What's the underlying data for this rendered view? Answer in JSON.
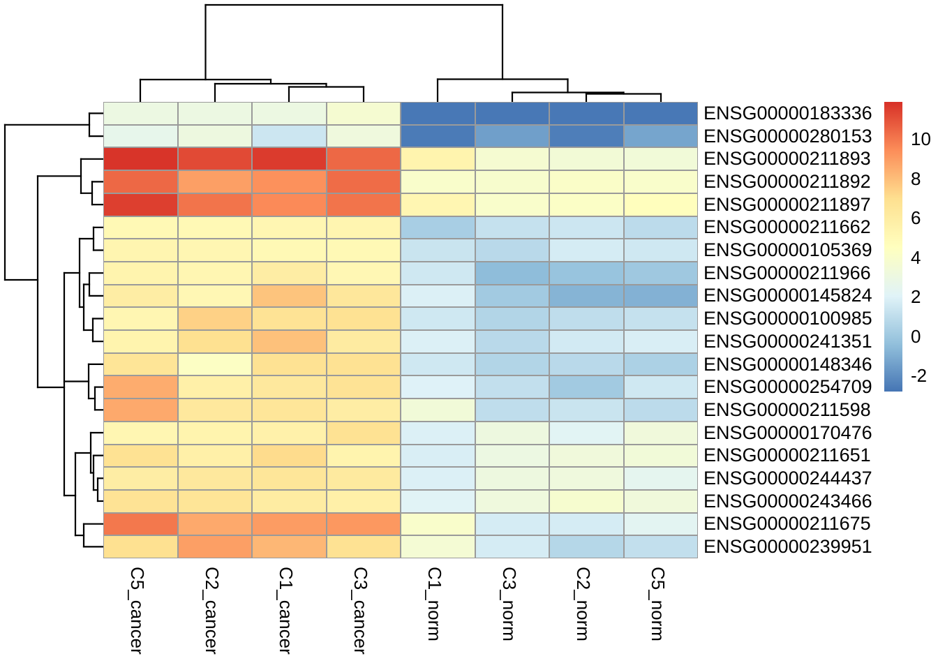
{
  "figure": {
    "background": "#ffffff",
    "grid_border_color": "#9a9a9a",
    "dendrogram_color": "#000000",
    "label_color": "#000000"
  },
  "chart_data": {
    "type": "heatmap",
    "columns": [
      "C5_cancer",
      "C2_cancer",
      "C1_cancer",
      "C3_cancer",
      "C1_norm",
      "C3_norm",
      "C2_norm",
      "C5_norm"
    ],
    "rows": [
      "ENSG00000183336",
      "ENSG00000280153",
      "ENSG00000211893",
      "ENSG00000211892",
      "ENSG00000211897",
      "ENSG00000211662",
      "ENSG00000105369",
      "ENSG00000211966",
      "ENSG00000145824",
      "ENSG00000100985",
      "ENSG00000241351",
      "ENSG00000148346",
      "ENSG00000254709",
      "ENSG00000211598",
      "ENSG00000170476",
      "ENSG00000211651",
      "ENSG00000244437",
      "ENSG00000243466",
      "ENSG00000211675",
      "ENSG00000239951"
    ],
    "values": [
      [
        3.0,
        3.0,
        3.0,
        3.7,
        -2.8,
        -2.8,
        -2.8,
        -2.8
      ],
      [
        2.6,
        3.1,
        1.4,
        3.2,
        -2.7,
        -1.5,
        -2.6,
        -1.3
      ],
      [
        11.8,
        11.2,
        11.6,
        10.4,
        5.4,
        3.7,
        3.5,
        3.4
      ],
      [
        10.4,
        8.9,
        9.3,
        10.3,
        4.0,
        3.9,
        4.1,
        4.0
      ],
      [
        11.5,
        10.1,
        9.5,
        10.1,
        5.2,
        4.0,
        4.2,
        4.6
      ],
      [
        5.0,
        5.0,
        5.2,
        5.3,
        0.3,
        1.2,
        1.4,
        0.9
      ],
      [
        5.3,
        5.2,
        5.0,
        5.0,
        1.3,
        0.8,
        1.7,
        1.5
      ],
      [
        5.4,
        5.2,
        5.9,
        5.1,
        1.5,
        -0.5,
        -0.2,
        0.0
      ],
      [
        5.9,
        5.1,
        7.8,
        6.4,
        1.9,
        0.1,
        -0.8,
        -0.9
      ],
      [
        5.2,
        7.4,
        6.7,
        6.8,
        1.5,
        0.6,
        1.0,
        1.2
      ],
      [
        5.4,
        6.9,
        7.9,
        6.1,
        1.9,
        0.8,
        1.6,
        1.8
      ],
      [
        6.6,
        4.3,
        6.8,
        6.8,
        1.5,
        0.6,
        0.8,
        0.4
      ],
      [
        8.5,
        5.7,
        6.3,
        6.7,
        2.0,
        1.1,
        0.1,
        1.5
      ],
      [
        8.6,
        6.3,
        6.5,
        5.9,
        3.4,
        1.0,
        1.3,
        0.9
      ],
      [
        5.2,
        5.4,
        5.6,
        6.8,
        1.9,
        3.1,
        2.2,
        3.3
      ],
      [
        6.8,
        5.7,
        7.1,
        5.4,
        1.8,
        3.0,
        3.3,
        3.4
      ],
      [
        5.9,
        6.3,
        6.5,
        6.2,
        1.9,
        3.1,
        3.2,
        2.4
      ],
      [
        6.7,
        6.6,
        6.0,
        5.7,
        2.1,
        3.2,
        3.8,
        3.3
      ],
      [
        10.0,
        8.6,
        9.0,
        9.1,
        4.0,
        1.7,
        1.7,
        2.3
      ],
      [
        6.9,
        8.9,
        8.2,
        6.8,
        3.6,
        1.7,
        0.7,
        1.1
      ]
    ],
    "color_scale": {
      "palette_name": "RdYlBu reversed",
      "anchor_values": [
        -2.9,
        -0.43,
        2.03,
        4.5,
        6.97,
        9.43,
        11.9
      ],
      "anchor_colors": [
        "#4575b4",
        "#91bfdb",
        "#e0f3f8",
        "#ffffbf",
        "#fee090",
        "#fc8d59",
        "#d73027"
      ],
      "domain_top": 11.88,
      "domain_bottom": -2.8
    },
    "legend": {
      "tick_labels": [
        "10",
        "8",
        "6",
        "4",
        "2",
        "0",
        "-2"
      ],
      "tick_values": [
        10,
        8,
        6,
        4,
        2,
        0,
        -2
      ]
    },
    "col_dendrogram_segments": [
      [
        201,
        146,
        201,
        114
      ],
      [
        308,
        146,
        308,
        120
      ],
      [
        414,
        146,
        414,
        124.5
      ],
      [
        521,
        146,
        521,
        124.5
      ],
      [
        414,
        124.5,
        521,
        124.5
      ],
      [
        467.5,
        124.5,
        467.5,
        120
      ],
      [
        308,
        120,
        467.5,
        120
      ],
      [
        388,
        120,
        388,
        114
      ],
      [
        201,
        114,
        388,
        114
      ],
      [
        294.5,
        114,
        294.5,
        7
      ],
      [
        627,
        146,
        627,
        113.5
      ],
      [
        734,
        146,
        734,
        132.5
      ],
      [
        840,
        146,
        840,
        134.5
      ],
      [
        947,
        146,
        947,
        134.5
      ],
      [
        840,
        134.5,
        947,
        134.5
      ],
      [
        893.5,
        134.5,
        893.5,
        132.5
      ],
      [
        734,
        132.5,
        893.5,
        132.5
      ],
      [
        813.5,
        132.5,
        813.5,
        113.5
      ],
      [
        627,
        113.5,
        813.5,
        113.5
      ],
      [
        720,
        113.5,
        720,
        7
      ],
      [
        294.5,
        7,
        720,
        7
      ]
    ],
    "row_dendrogram_segments": [
      [
        148,
        162.4,
        128,
        162.4
      ],
      [
        148,
        195.1,
        128,
        195.1
      ],
      [
        128,
        162.4,
        128,
        195.1
      ],
      [
        128,
        178.8,
        7,
        178.8
      ],
      [
        7,
        178.8,
        7,
        401
      ],
      [
        7,
        401,
        54,
        401
      ],
      [
        54,
        252.3,
        54,
        555
      ],
      [
        54,
        252.3,
        116,
        252.3
      ],
      [
        116,
        227.8,
        116,
        276.8
      ],
      [
        116,
        227.8,
        148,
        227.8
      ],
      [
        116,
        276.8,
        132,
        276.8
      ],
      [
        132,
        260.4,
        132,
        293.1
      ],
      [
        132,
        260.4,
        148,
        260.4
      ],
      [
        132,
        293.1,
        148,
        293.1
      ],
      [
        54,
        555,
        92,
        555
      ],
      [
        92,
        391,
        92,
        710
      ],
      [
        92,
        391,
        114,
        391
      ],
      [
        114,
        342,
        114,
        440
      ],
      [
        114,
        342,
        134,
        342
      ],
      [
        134,
        325.8,
        134,
        358.5
      ],
      [
        134,
        325.8,
        148,
        325.8
      ],
      [
        134,
        358.5,
        148,
        358.5
      ],
      [
        114,
        440,
        120,
        440
      ],
      [
        120,
        407.5,
        120,
        473
      ],
      [
        120,
        407.5,
        128,
        407.5
      ],
      [
        128,
        391.2,
        128,
        423.9
      ],
      [
        128,
        391.2,
        148,
        391.2
      ],
      [
        128,
        423.9,
        148,
        423.9
      ],
      [
        120,
        473,
        133,
        473
      ],
      [
        133,
        456.5,
        133,
        489.2
      ],
      [
        133,
        456.5,
        148,
        456.5
      ],
      [
        133,
        489.2,
        148,
        489.2
      ],
      [
        92,
        546.5,
        127,
        546.5
      ],
      [
        127,
        521.9,
        127,
        571
      ],
      [
        127,
        521.9,
        148,
        521.9
      ],
      [
        127,
        571,
        136,
        571
      ],
      [
        136,
        554.6,
        136,
        587.3
      ],
      [
        136,
        554.6,
        148,
        554.6
      ],
      [
        136,
        587.3,
        148,
        587.3
      ],
      [
        92,
        710,
        108,
        710
      ],
      [
        108,
        649,
        108,
        767.1
      ],
      [
        108,
        649,
        130,
        649
      ],
      [
        130,
        620,
        130,
        677.5
      ],
      [
        130,
        620,
        148,
        620
      ],
      [
        130,
        677.5,
        134,
        677.5
      ],
      [
        134,
        652.6,
        134,
        702.1
      ],
      [
        134,
        652.6,
        148,
        652.6
      ],
      [
        134,
        702.1,
        140,
        702.1
      ],
      [
        140,
        685.3,
        140,
        718
      ],
      [
        140,
        685.3,
        148,
        685.3
      ],
      [
        140,
        718,
        148,
        718
      ],
      [
        108,
        767.1,
        120,
        767.1
      ],
      [
        120,
        750.7,
        120,
        783.4
      ],
      [
        120,
        750.7,
        148,
        750.7
      ],
      [
        120,
        783.4,
        148,
        783.4
      ]
    ]
  }
}
